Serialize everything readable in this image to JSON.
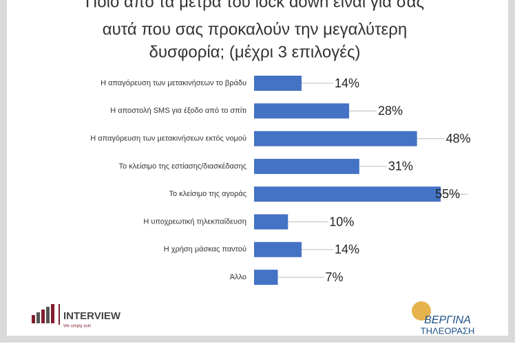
{
  "chart_data": {
    "type": "bar",
    "orientation": "horizontal",
    "title": [
      "Ποιο από τα μέτρα του lock down είναι για σας",
      "αυτά που σας προκαλούν την μεγαλύτερη",
      "δυσφορία; (μέχρι 3 επιλογές)"
    ],
    "categories": [
      "Η απαγόρευση των μετακινήσεων το βράδυ",
      "Η αποστολή SMS για έξοδο από το σπίτι",
      "Η απαγόρευση των μετακινήσεων εκτός νομού",
      "Το κλείσιμο της εστίασης/διασκέδασης",
      "Το κλείσιμο της αγοράς",
      "Η υποχρεωτική τηλεκπαίδευση",
      "Η χρήση μάσκας παντού",
      "Άλλο"
    ],
    "values": [
      14,
      28,
      48,
      31,
      55,
      10,
      14,
      7
    ],
    "value_labels": [
      "14%",
      "28%",
      "48%",
      "31%",
      "55%",
      "10%",
      "14%",
      "7%"
    ],
    "color": "#4472c4"
  },
  "logos": {
    "left": "INTERVIEW",
    "left_tagline": "We simply ask!",
    "right_top": "ΒΕΡΓΙΝΑ",
    "right_bottom": "ΤΗΛΕΟΡΑΣΗ"
  }
}
